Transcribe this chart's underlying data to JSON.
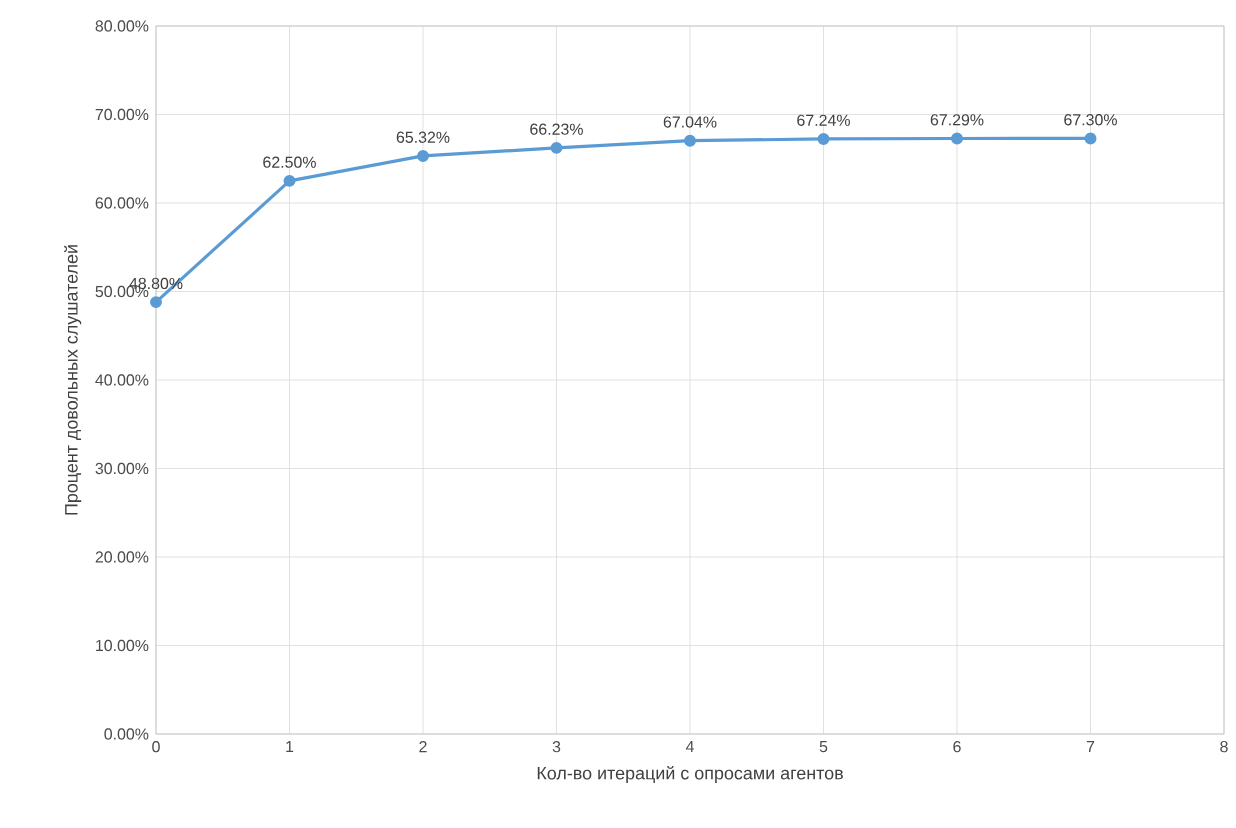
{
  "chart_data": {
    "type": "line",
    "xlabel": "Кол-во итераций с опросами агентов",
    "ylabel": "Процент довольных слушателей",
    "x": [
      0,
      1,
      2,
      3,
      4,
      5,
      6,
      7
    ],
    "values": [
      48.8,
      62.5,
      65.32,
      66.23,
      67.04,
      67.24,
      67.29,
      67.3
    ],
    "value_labels": [
      "48.80%",
      "62.50%",
      "65.32%",
      "66.23%",
      "67.04%",
      "67.24%",
      "67.29%",
      "67.30%"
    ],
    "color": "#5b9bd5",
    "marker": "circle",
    "grid": true,
    "xlim": [
      0,
      8
    ],
    "xticks": [
      0,
      1,
      2,
      3,
      4,
      5,
      6,
      7,
      8
    ],
    "ylim": [
      0,
      80
    ],
    "yticks": [
      {
        "value": 0,
        "label": "0.00%"
      },
      {
        "value": 10,
        "label": "10.00%"
      },
      {
        "value": 20,
        "label": "20.00%"
      },
      {
        "value": 30,
        "label": "30.00%"
      },
      {
        "value": 40,
        "label": "40.00%"
      },
      {
        "value": 50,
        "label": "50.00%"
      },
      {
        "value": 60,
        "label": "60.00%"
      },
      {
        "value": 70,
        "label": "70.00%"
      },
      {
        "value": 80,
        "label": "80.00%"
      }
    ]
  }
}
